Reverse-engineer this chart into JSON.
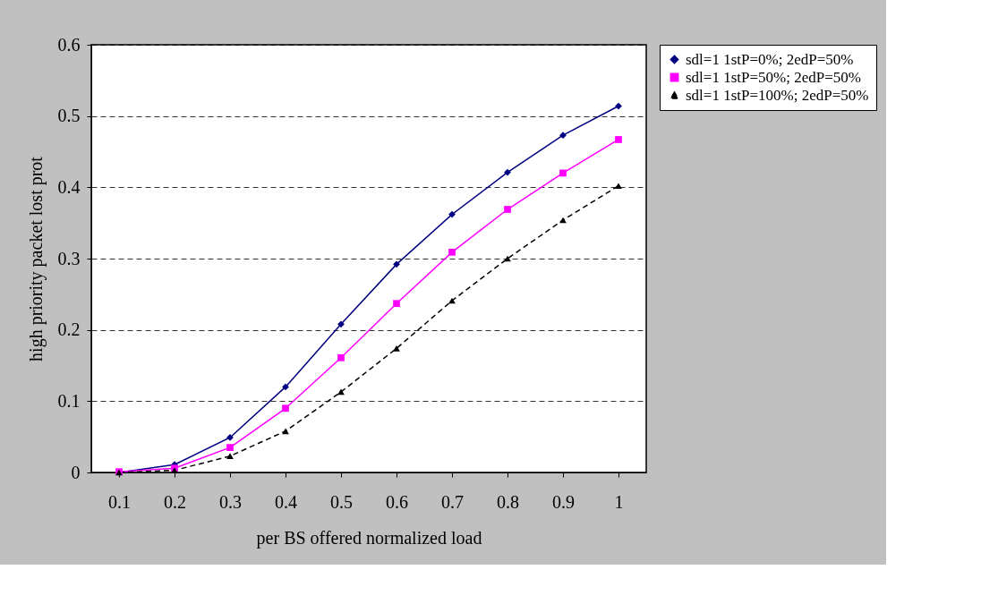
{
  "chart_data": {
    "type": "line",
    "xlabel": "per BS offered normalized load",
    "ylabel": "high priority packet lost prot",
    "categories": [
      "0.1",
      "0.2",
      "0.3",
      "0.4",
      "0.5",
      "0.6",
      "0.7",
      "0.8",
      "0.9",
      "1"
    ],
    "series": [
      {
        "name": "sdl=1 1stP=0%; 2edP=50%",
        "color": "#000080",
        "marker": "diamond",
        "line_style": "solid",
        "values": [
          0.0,
          0.011,
          0.049,
          0.12,
          0.208,
          0.292,
          0.362,
          0.421,
          0.473,
          0.514
        ]
      },
      {
        "name": "sdl=1 1stP=50%; 2edP=50%",
        "color": "#ff00ff",
        "marker": "square",
        "line_style": "solid",
        "values": [
          0.001,
          0.006,
          0.035,
          0.09,
          0.161,
          0.237,
          0.309,
          0.369,
          0.42,
          0.467
        ]
      },
      {
        "name": "sdl=1 1stP=100%; 2edP=50%",
        "color": "#000000",
        "marker": "triangle",
        "line_style": "dashed",
        "values": [
          0.0,
          0.003,
          0.023,
          0.058,
          0.113,
          0.174,
          0.241,
          0.3,
          0.354,
          0.402
        ]
      }
    ],
    "ylim": [
      0,
      0.6
    ],
    "yticks": [
      0,
      0.1,
      0.2,
      0.3,
      0.4,
      0.5,
      0.6
    ],
    "grid": "y",
    "legend": "right"
  }
}
